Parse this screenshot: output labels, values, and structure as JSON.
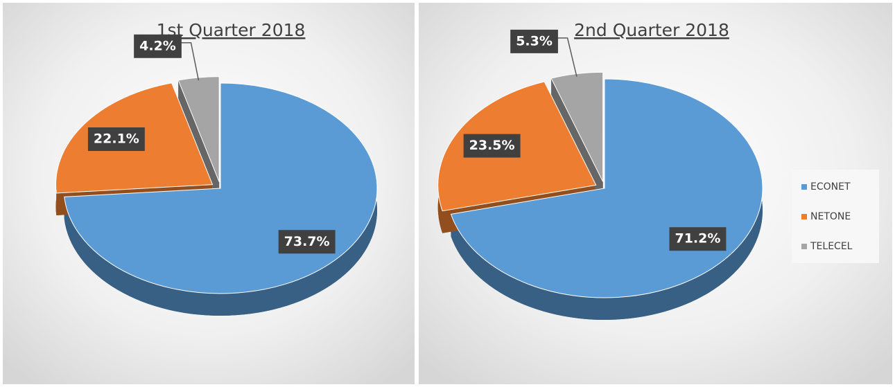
{
  "chart_data": [
    {
      "type": "pie",
      "title": "1st Quarter 2018",
      "values": [
        73.7,
        22.1,
        4.2
      ],
      "value_labels": [
        "73.7%",
        "22.1%",
        "4.2%"
      ],
      "colors": [
        "#5b9bd5",
        "#ed7d31",
        "#a5a5a5"
      ]
    },
    {
      "type": "pie",
      "title": "2nd Quarter 2018",
      "categories": [
        "ECONET",
        "NETONE",
        "TELECEL"
      ],
      "values": [
        71.2,
        23.5,
        5.3
      ],
      "value_labels": [
        "71.2%",
        "23.5%",
        "5.3%"
      ],
      "colors": [
        "#5b9bd5",
        "#ed7d31",
        "#a5a5a5"
      ],
      "legend": "right"
    }
  ]
}
